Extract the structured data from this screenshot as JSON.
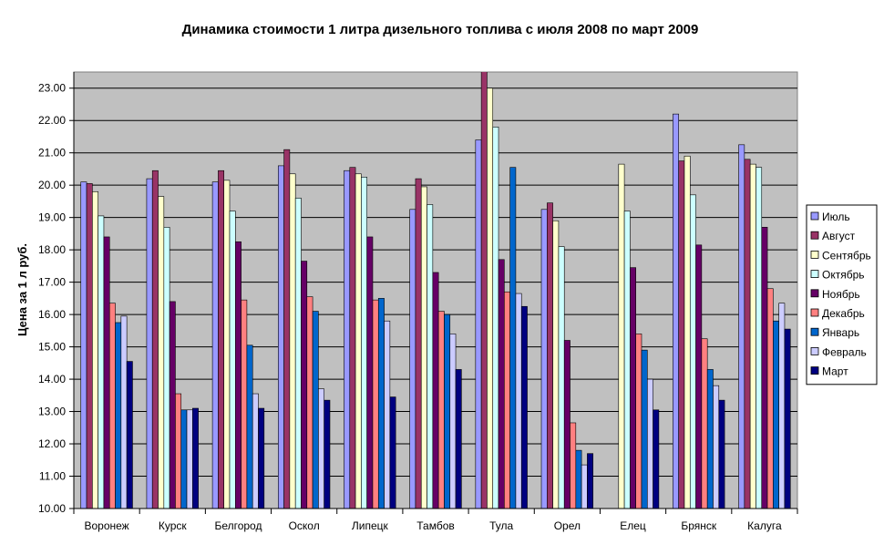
{
  "chart_data": {
    "type": "bar",
    "title": "Динамика стоимости 1 литра дизельного топлива с июля 2008 по март 2009",
    "xlabel": "",
    "ylabel": "Цена за 1 л руб.",
    "ylim": [
      10,
      23.5
    ],
    "yticks": [
      "10.00",
      "11.00",
      "12.00",
      "13.00",
      "14.00",
      "15.00",
      "16.00",
      "17.00",
      "18.00",
      "19.00",
      "20.00",
      "21.00",
      "22.00",
      "23.00"
    ],
    "grid": true,
    "legend_position": "right",
    "categories": [
      "Воронеж",
      "Курск",
      "Белгород",
      "Оскол",
      "Липецк",
      "Тамбов",
      "Тула",
      "Орел",
      "Елец",
      "Брянск",
      "Калуга"
    ],
    "series": [
      {
        "name": "Июль",
        "color": "#9999ff",
        "values": [
          20.1,
          20.2,
          20.1,
          20.6,
          20.45,
          19.25,
          21.4,
          19.25,
          null,
          22.2,
          21.25
        ]
      },
      {
        "name": "Август",
        "color": "#993366",
        "values": [
          20.05,
          20.45,
          20.45,
          21.1,
          20.55,
          20.2,
          23.55,
          19.45,
          null,
          20.75,
          20.8
        ]
      },
      {
        "name": "Сентябрь",
        "color": "#ffffcc",
        "values": [
          19.8,
          19.65,
          20.15,
          20.35,
          20.35,
          19.95,
          23.0,
          18.9,
          20.65,
          20.9,
          20.65
        ]
      },
      {
        "name": "Октябрь",
        "color": "#ccffff",
        "values": [
          19.05,
          18.7,
          19.2,
          19.6,
          20.25,
          19.4,
          21.8,
          18.1,
          19.2,
          19.7,
          20.55
        ]
      },
      {
        "name": "Ноябрь",
        "color": "#660066",
        "values": [
          18.4,
          16.4,
          18.25,
          17.65,
          18.4,
          17.3,
          17.7,
          15.2,
          17.45,
          18.15,
          18.7
        ]
      },
      {
        "name": "Декабрь",
        "color": "#ff8080",
        "values": [
          16.35,
          13.55,
          16.45,
          16.55,
          16.45,
          16.1,
          16.7,
          12.65,
          15.4,
          15.25,
          16.8
        ]
      },
      {
        "name": "Январь",
        "color": "#0066cc",
        "values": [
          15.75,
          13.05,
          15.05,
          16.1,
          16.5,
          16.0,
          20.55,
          11.8,
          14.9,
          14.3,
          15.8
        ]
      },
      {
        "name": "Февраль",
        "color": "#ccccff",
        "values": [
          15.95,
          13.05,
          13.55,
          13.7,
          15.8,
          15.4,
          16.65,
          11.35,
          14.0,
          13.8,
          16.35
        ]
      },
      {
        "name": "Март",
        "color": "#000080",
        "values": [
          14.55,
          13.1,
          13.1,
          13.35,
          13.45,
          14.3,
          16.25,
          11.7,
          13.05,
          13.35,
          15.55
        ]
      }
    ]
  },
  "colors": {
    "plot_background": "#c0c0c0",
    "gridline": "#000000",
    "bar_outline": "#000000"
  }
}
